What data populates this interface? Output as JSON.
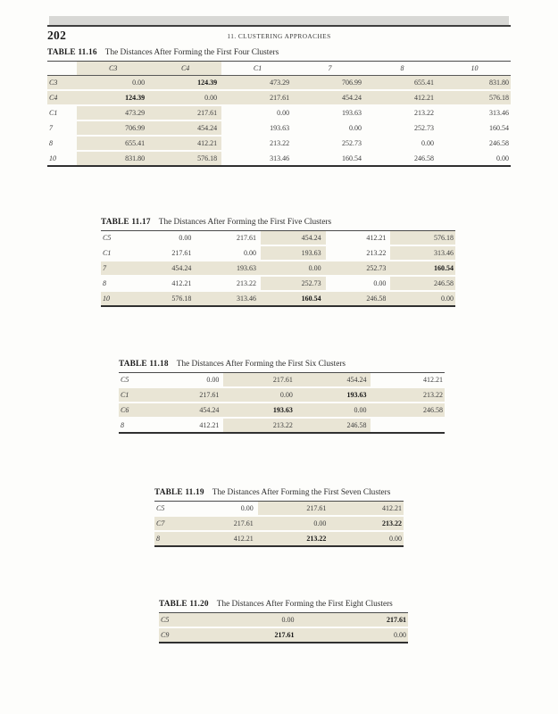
{
  "theme": {
    "highlight": "#e9e5d5",
    "edge_strip": "#d8d8d5",
    "rule_dark": "#3f3f3f",
    "paper": "#fdfdfb"
  },
  "header": {
    "page_number": "202",
    "running_title": "11. CLUSTERING APPROACHES"
  },
  "tables": [
    {
      "caption_label": "TABLE 11.16",
      "caption_title": "The Distances After Forming the First Four Clusters",
      "column_headers": [
        "C3",
        "C4",
        "C1",
        "7",
        "8",
        "10"
      ],
      "rows": [
        {
          "label": "C3",
          "values": [
            "0.00",
            "124.39",
            "473.29",
            "706.99",
            "655.41",
            "831.80"
          ]
        },
        {
          "label": "C4",
          "values": [
            "124.39",
            "0.00",
            "217.61",
            "454.24",
            "412.21",
            "576.18"
          ]
        },
        {
          "label": "C1",
          "values": [
            "473.29",
            "217.61",
            "0.00",
            "193.63",
            "213.22",
            "313.46"
          ]
        },
        {
          "label": "7",
          "values": [
            "706.99",
            "454.24",
            "193.63",
            "0.00",
            "252.73",
            "160.54"
          ]
        },
        {
          "label": "8",
          "values": [
            "655.41",
            "412.21",
            "213.22",
            "252.73",
            "0.00",
            "246.58"
          ]
        },
        {
          "label": "10",
          "values": [
            "831.80",
            "576.18",
            "313.46",
            "160.54",
            "246.58",
            "0.00"
          ]
        }
      ],
      "bold_cells": [
        [
          0,
          1
        ],
        [
          1,
          0
        ]
      ],
      "shaded_rows": [
        0,
        1
      ],
      "shaded_cols": [
        0,
        1
      ]
    },
    {
      "caption_label": "TABLE 11.17",
      "caption_title": "The Distances After Forming the First Five Clusters",
      "column_headers": null,
      "rows": [
        {
          "label": "C5",
          "values": [
            "0.00",
            "217.61",
            "454.24",
            "412.21",
            "576.18"
          ]
        },
        {
          "label": "C1",
          "values": [
            "217.61",
            "0.00",
            "193.63",
            "213.22",
            "313.46"
          ]
        },
        {
          "label": "7",
          "values": [
            "454.24",
            "193.63",
            "0.00",
            "252.73",
            "160.54"
          ]
        },
        {
          "label": "8",
          "values": [
            "412.21",
            "213.22",
            "252.73",
            "0.00",
            "246.58"
          ]
        },
        {
          "label": "10",
          "values": [
            "576.18",
            "313.46",
            "160.54",
            "246.58",
            "0.00"
          ]
        }
      ],
      "bold_cells": [
        [
          2,
          4
        ],
        [
          4,
          2
        ]
      ],
      "shaded_rows": [
        2,
        4
      ],
      "shaded_cols": [
        2,
        4
      ]
    },
    {
      "caption_label": "TABLE 11.18",
      "caption_title": "The Distances After Forming the First Six Clusters",
      "column_headers": null,
      "rows": [
        {
          "label": "C5",
          "values": [
            "0.00",
            "217.61",
            "454.24",
            "412.21"
          ]
        },
        {
          "label": "C1",
          "values": [
            "217.61",
            "0.00",
            "193.63",
            "213.22"
          ]
        },
        {
          "label": "C6",
          "values": [
            "454.24",
            "193.63",
            "0.00",
            "246.58"
          ]
        },
        {
          "label": "8",
          "values": [
            "412.21",
            "213.22",
            "246.58",
            ""
          ]
        }
      ],
      "bold_cells": [
        [
          1,
          2
        ],
        [
          2,
          1
        ]
      ],
      "shaded_rows": [
        1,
        2
      ],
      "shaded_cols": [
        1,
        2
      ]
    },
    {
      "caption_label": "TABLE 11.19",
      "caption_title": "The Distances After Forming the First Seven Clusters",
      "column_headers": null,
      "rows": [
        {
          "label": "C5",
          "values": [
            "0.00",
            "217.61",
            "412.21"
          ]
        },
        {
          "label": "C7",
          "values": [
            "217.61",
            "0.00",
            "213.22"
          ]
        },
        {
          "label": "8",
          "values": [
            "412.21",
            "213.22",
            "0.00"
          ]
        }
      ],
      "bold_cells": [
        [
          1,
          2
        ],
        [
          2,
          1
        ]
      ],
      "shaded_rows": [
        1,
        2
      ],
      "shaded_cols": [
        1,
        2
      ]
    },
    {
      "caption_label": "TABLE 11.20",
      "caption_title": "The Distances After Forming the First Eight Clusters",
      "column_headers": null,
      "rows": [
        {
          "label": "C5",
          "values": [
            "0.00",
            "217.61"
          ]
        },
        {
          "label": "C9",
          "values": [
            "217.61",
            "0.00"
          ]
        }
      ],
      "bold_cells": [
        [
          0,
          1
        ],
        [
          1,
          0
        ]
      ],
      "shaded_rows": [
        0,
        1
      ],
      "shaded_cols": [
        0,
        1
      ]
    }
  ]
}
